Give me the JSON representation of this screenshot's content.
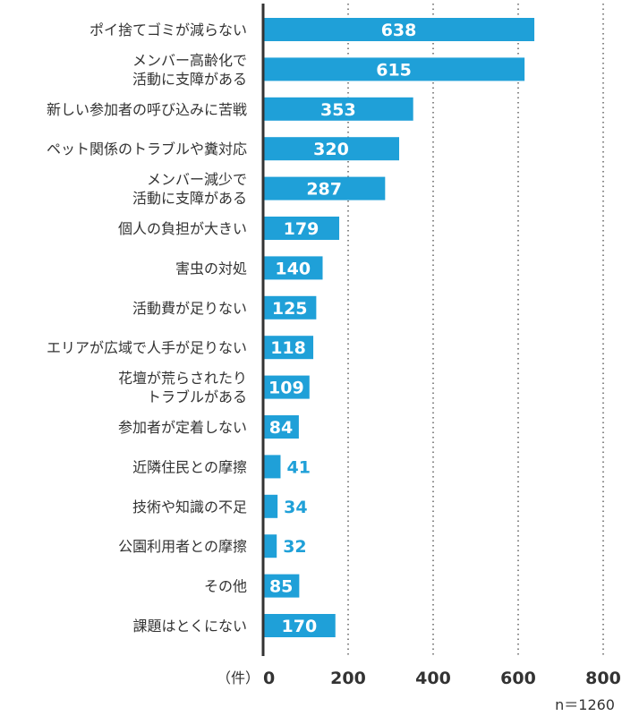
{
  "chart_data": {
    "type": "bar",
    "orientation": "horizontal",
    "categories": [
      [
        "ポイ捨てゴミが減らない"
      ],
      [
        "メンバー高齢化で",
        "活動に支障がある"
      ],
      [
        "新しい参加者の呼び込みに苦戦"
      ],
      [
        "ペット関係のトラブルや糞対応"
      ],
      [
        "メンバー減少で",
        "活動に支障がある"
      ],
      [
        "個人の負担が大きい"
      ],
      [
        "害虫の対処"
      ],
      [
        "活動費が足りない"
      ],
      [
        "エリアが広域で人手が足りない"
      ],
      [
        "花壇が荒らされたり",
        "トラブルがある"
      ],
      [
        "参加者が定着しない"
      ],
      [
        "近隣住民との摩擦"
      ],
      [
        "技術や知識の不足"
      ],
      [
        "公園利用者との摩擦"
      ],
      [
        "その他"
      ],
      [
        "課題はとくにない"
      ]
    ],
    "values": [
      638,
      615,
      353,
      320,
      287,
      179,
      140,
      125,
      118,
      109,
      84,
      41,
      34,
      32,
      85,
      170
    ],
    "xlim": [
      0,
      800
    ],
    "ticks": [
      0,
      200,
      400,
      600,
      800
    ],
    "unit_label": "（件）",
    "grid": "dotted vertical",
    "bar_color": "#1fa0d8",
    "label_inside_color": "#ffffff",
    "label_outside_color": "#1fa0d8"
  },
  "note": "n＝1260"
}
